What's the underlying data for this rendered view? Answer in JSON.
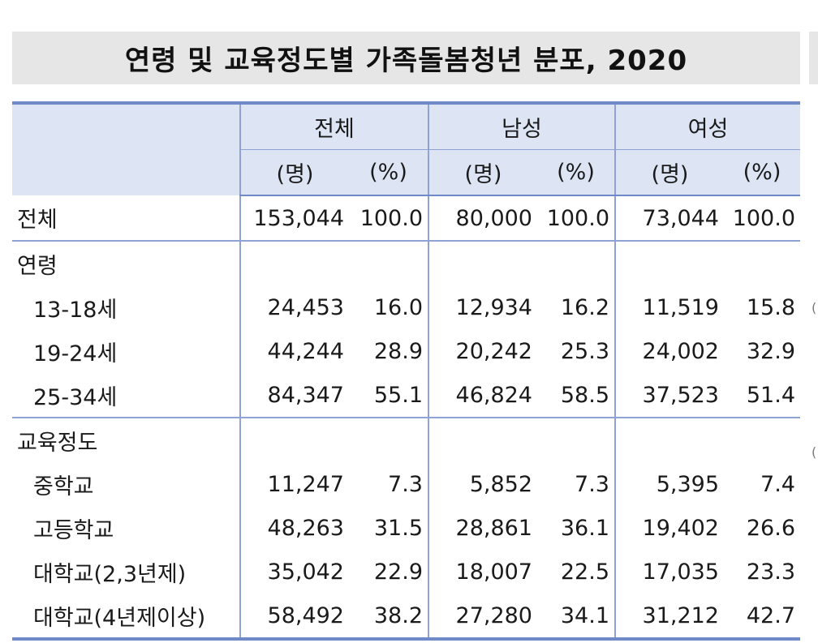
{
  "title": "연령 및 교육정도별 가족돌봄청년 분포, 2020",
  "columns": {
    "groups": [
      "전체",
      "남성",
      "여성"
    ],
    "unit_count": "(명)",
    "unit_pct": "(%)"
  },
  "rows": [
    {
      "label": "전체",
      "values": [
        "153,044",
        "100.0",
        "80,000",
        "100.0",
        "73,044",
        "100.0"
      ]
    },
    {
      "label": "연령",
      "values": [
        "",
        "",
        "",
        "",
        "",
        ""
      ]
    },
    {
      "label": "13-18세",
      "values": [
        "24,453",
        "16.0",
        "12,934",
        "16.2",
        "11,519",
        "15.8"
      ]
    },
    {
      "label": "19-24세",
      "values": [
        "44,244",
        "28.9",
        "20,242",
        "25.3",
        "24,002",
        "32.9"
      ]
    },
    {
      "label": "25-34세",
      "values": [
        "84,347",
        "55.1",
        "46,824",
        "58.5",
        "37,523",
        "51.4"
      ]
    },
    {
      "label": "교육정도",
      "values": [
        "",
        "",
        "",
        "",
        "",
        ""
      ]
    },
    {
      "label": "중학교",
      "values": [
        "11,247",
        "7.3",
        "5,852",
        "7.3",
        "5,395",
        "7.4"
      ]
    },
    {
      "label": "고등학교",
      "values": [
        "48,263",
        "31.5",
        "28,861",
        "36.1",
        "19,402",
        "26.6"
      ]
    },
    {
      "label": "대학교(2,3년제)",
      "values": [
        "35,042",
        "22.9",
        "18,007",
        "22.5",
        "17,035",
        "23.3"
      ]
    },
    {
      "label": "대학교(4년제이상)",
      "values": [
        "58,492",
        "38.2",
        "27,280",
        "34.1",
        "31,212",
        "42.7"
      ]
    }
  ]
}
